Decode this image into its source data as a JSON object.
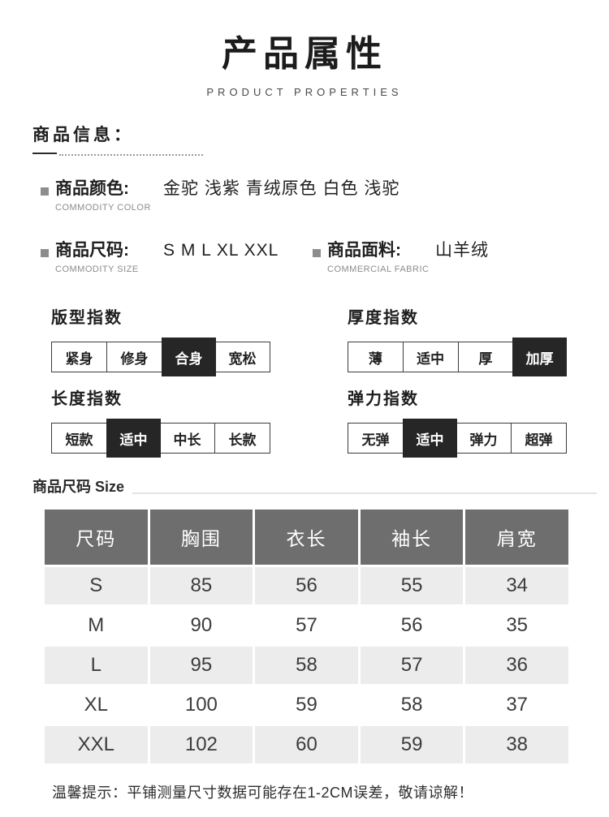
{
  "header": {
    "title": "产品属性",
    "subtitle": "PRODUCT PROPERTIES"
  },
  "info_section": {
    "heading": "商品信息：",
    "items": [
      {
        "label": "商品颜色:",
        "sub": "COMMODITY COLOR",
        "value": "金驼 浅紫 青绒原色 白色 浅驼"
      },
      {
        "label": "商品尺码:",
        "sub": "COMMODITY SIZE",
        "value": "S M L XL XXL"
      },
      {
        "label": "商品面料:",
        "sub": "COMMERCIAL FABRIC",
        "value": "山羊绒"
      }
    ]
  },
  "index_sections": [
    {
      "title": "版型指数",
      "options": [
        "紧身",
        "修身",
        "合身",
        "宽松"
      ],
      "selected": 2
    },
    {
      "title": "厚度指数",
      "options": [
        "薄",
        "适中",
        "厚",
        "加厚"
      ],
      "selected": 3
    },
    {
      "title": "长度指数",
      "options": [
        "短款",
        "适中",
        "中长",
        "长款"
      ],
      "selected": 1
    },
    {
      "title": "弹力指数",
      "options": [
        "无弹",
        "适中",
        "弹力",
        "超弹"
      ],
      "selected": 1
    }
  ],
  "size_section": {
    "heading": "商品尺码 Size",
    "table": {
      "columns": [
        "尺码",
        "胸围",
        "衣长",
        "袖长",
        "肩宽"
      ],
      "rows": [
        [
          "S",
          "85",
          "56",
          "55",
          "34"
        ],
        [
          "M",
          "90",
          "57",
          "56",
          "35"
        ],
        [
          "L",
          "95",
          "58",
          "57",
          "36"
        ],
        [
          "XL",
          "100",
          "59",
          "58",
          "37"
        ],
        [
          "XXL",
          "102",
          "60",
          "59",
          "38"
        ]
      ]
    },
    "note": "温馨提示：平铺测量尺寸数据可能存在1-2CM误差，敬请谅解！"
  },
  "colors": {
    "selected_cell_bg": "#262626",
    "table_header_bg": "#6e6e6e",
    "table_alt_row_bg": "#ececec",
    "text_primary": "#1f1f1f",
    "text_secondary": "#8c8c8c"
  }
}
